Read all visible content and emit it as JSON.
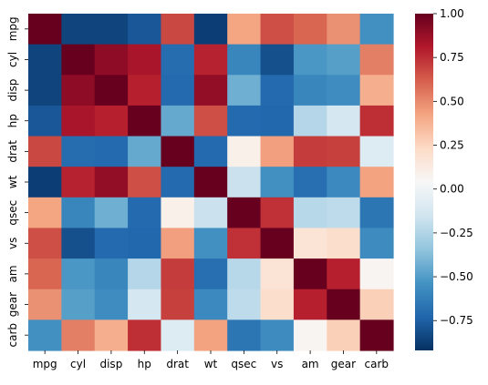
{
  "chart_data": {
    "type": "heatmap",
    "title": "",
    "xlabel": "",
    "ylabel": "",
    "x_labels": [
      "mpg",
      "cyl",
      "disp",
      "hp",
      "drat",
      "wt",
      "qsec",
      "vs",
      "am",
      "gear",
      "carb"
    ],
    "y_labels": [
      "mpg",
      "cyl",
      "disp",
      "hp",
      "drat",
      "wt",
      "qsec",
      "vs",
      "am",
      "gear",
      "carb"
    ],
    "values": [
      [
        1.0,
        -0.85,
        -0.85,
        -0.78,
        0.68,
        -0.87,
        0.42,
        0.66,
        0.6,
        0.48,
        -0.55
      ],
      [
        -0.85,
        1.0,
        0.9,
        0.83,
        -0.7,
        0.78,
        -0.59,
        -0.81,
        -0.52,
        -0.49,
        0.53
      ],
      [
        -0.85,
        0.9,
        1.0,
        0.79,
        -0.71,
        0.89,
        -0.43,
        -0.71,
        -0.59,
        -0.56,
        0.39
      ],
      [
        -0.78,
        0.83,
        0.79,
        1.0,
        -0.45,
        0.66,
        -0.71,
        -0.72,
        -0.24,
        -0.13,
        0.75
      ],
      [
        0.68,
        -0.7,
        -0.71,
        -0.45,
        1.0,
        -0.71,
        0.09,
        0.44,
        0.71,
        0.7,
        -0.09
      ],
      [
        -0.87,
        0.78,
        0.89,
        0.66,
        -0.71,
        1.0,
        -0.17,
        -0.55,
        -0.69,
        -0.58,
        0.43
      ],
      [
        0.42,
        -0.59,
        -0.43,
        -0.71,
        0.09,
        -0.17,
        1.0,
        0.74,
        -0.23,
        -0.21,
        -0.66
      ],
      [
        0.66,
        -0.81,
        -0.71,
        -0.72,
        0.44,
        -0.55,
        0.74,
        1.0,
        0.17,
        0.21,
        -0.57
      ],
      [
        0.6,
        -0.52,
        -0.59,
        -0.24,
        0.71,
        -0.69,
        -0.23,
        0.17,
        1.0,
        0.79,
        0.06
      ],
      [
        0.48,
        -0.49,
        -0.56,
        -0.13,
        0.7,
        -0.58,
        -0.21,
        0.21,
        0.79,
        1.0,
        0.27
      ],
      [
        -0.55,
        0.53,
        0.39,
        0.75,
        -0.09,
        0.43,
        -0.66,
        -0.57,
        0.06,
        0.27,
        1.0
      ]
    ],
    "vmin": -0.92,
    "vmax": 1.0,
    "colormap": "RdBu_r",
    "colormap_stops": [
      "#053061",
      "#2166ac",
      "#4393c3",
      "#92c5de",
      "#d1e5f0",
      "#f7f7f7",
      "#fddbc7",
      "#f4a582",
      "#d6604d",
      "#b2182b",
      "#67001f"
    ],
    "colorbar": {
      "ticks": [
        1.0,
        0.75,
        0.5,
        0.25,
        0.0,
        -0.25,
        -0.5,
        -0.75
      ],
      "tick_labels": [
        "1.00",
        "0.75",
        "0.50",
        "0.25",
        "0.00",
        "−0.25",
        "−0.50",
        "−0.75"
      ]
    },
    "grid": false,
    "legend": "colorbar-right"
  }
}
